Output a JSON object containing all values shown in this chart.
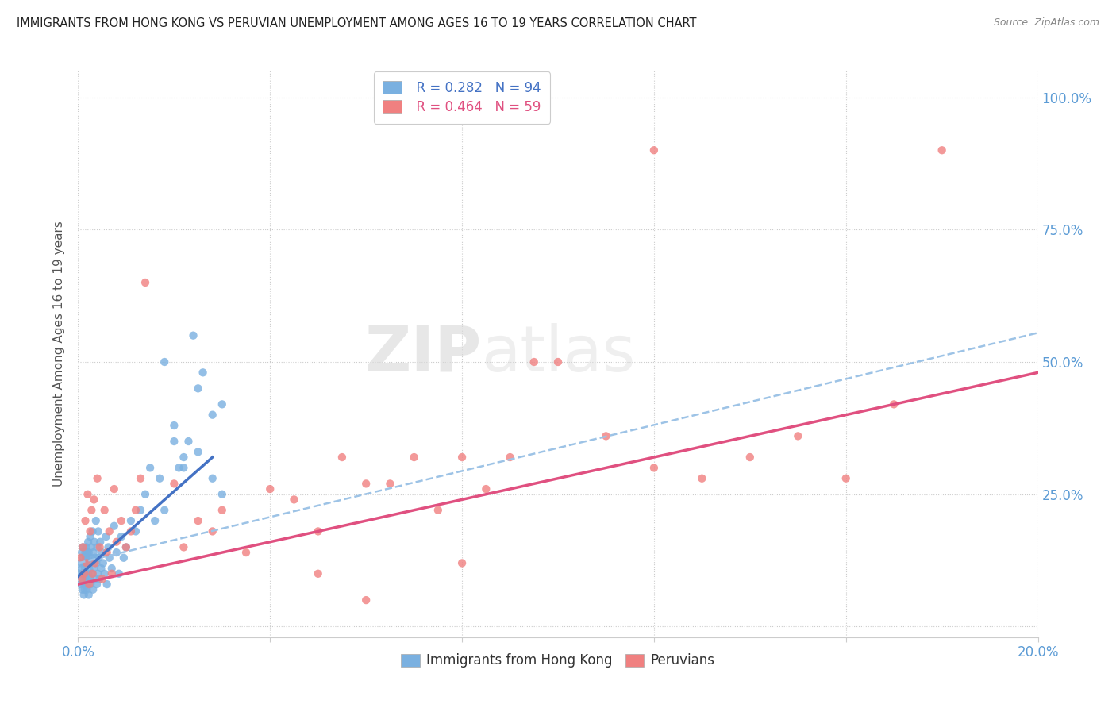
{
  "title": "IMMIGRANTS FROM HONG KONG VS PERUVIAN UNEMPLOYMENT AMONG AGES 16 TO 19 YEARS CORRELATION CHART",
  "source": "Source: ZipAtlas.com",
  "ylabel": "Unemployment Among Ages 16 to 19 years",
  "ytick_values": [
    0,
    0.25,
    0.5,
    0.75,
    1.0
  ],
  "ytick_labels_right": [
    "",
    "25.0%",
    "50.0%",
    "75.0%",
    "100.0%"
  ],
  "xlim": [
    0,
    0.2
  ],
  "ylim": [
    -0.02,
    1.05
  ],
  "watermark": "ZIPatlas",
  "legend_r1": "R = 0.282",
  "legend_n1": "N = 94",
  "legend_r2": "R = 0.464",
  "legend_n2": "N = 59",
  "color_hk": "#7ab0e0",
  "color_peru": "#f08080",
  "color_hk_line": "#4472c4",
  "color_peru_line": "#e05080",
  "color_dashed": "#9dc3e6",
  "background": "#ffffff",
  "hk_line_x0": 0.0,
  "hk_line_y0": 0.095,
  "hk_line_x1": 0.028,
  "hk_line_y1": 0.32,
  "peru_line_x0": 0.0,
  "peru_line_y0": 0.08,
  "peru_line_x1": 0.2,
  "peru_line_y1": 0.48,
  "dash_line_x0": 0.0,
  "dash_line_y0": 0.12,
  "dash_line_x1": 0.2,
  "dash_line_y1": 0.555,
  "hk_x": [
    0.0003,
    0.0005,
    0.0005,
    0.0007,
    0.0008,
    0.0008,
    0.0009,
    0.001,
    0.001,
    0.001,
    0.0012,
    0.0012,
    0.0013,
    0.0013,
    0.0014,
    0.0014,
    0.0015,
    0.0015,
    0.0016,
    0.0016,
    0.0017,
    0.0017,
    0.0018,
    0.0018,
    0.0019,
    0.0019,
    0.002,
    0.002,
    0.0021,
    0.0021,
    0.0022,
    0.0022,
    0.0023,
    0.0024,
    0.0025,
    0.0025,
    0.0026,
    0.0027,
    0.0028,
    0.003,
    0.003,
    0.0031,
    0.0032,
    0.0033,
    0.0034,
    0.0035,
    0.0036,
    0.0037,
    0.0038,
    0.0039,
    0.004,
    0.0041,
    0.0042,
    0.0043,
    0.0045,
    0.0046,
    0.0048,
    0.005,
    0.0052,
    0.0055,
    0.0058,
    0.006,
    0.0063,
    0.0065,
    0.007,
    0.0075,
    0.008,
    0.0085,
    0.009,
    0.0095,
    0.01,
    0.011,
    0.012,
    0.013,
    0.014,
    0.015,
    0.016,
    0.017,
    0.018,
    0.02,
    0.022,
    0.025,
    0.028,
    0.03,
    0.02,
    0.025,
    0.021,
    0.018,
    0.023,
    0.026,
    0.028,
    0.03,
    0.022,
    0.024
  ],
  "hk_y": [
    0.1,
    0.12,
    0.08,
    0.11,
    0.09,
    0.14,
    0.07,
    0.1,
    0.13,
    0.15,
    0.06,
    0.1,
    0.08,
    0.12,
    0.07,
    0.11,
    0.09,
    0.14,
    0.08,
    0.13,
    0.1,
    0.15,
    0.07,
    0.12,
    0.09,
    0.14,
    0.08,
    0.13,
    0.1,
    0.16,
    0.06,
    0.14,
    0.11,
    0.09,
    0.12,
    0.17,
    0.08,
    0.15,
    0.13,
    0.1,
    0.18,
    0.07,
    0.14,
    0.11,
    0.16,
    0.09,
    0.13,
    0.2,
    0.12,
    0.08,
    0.15,
    0.1,
    0.18,
    0.13,
    0.09,
    0.16,
    0.11,
    0.14,
    0.12,
    0.1,
    0.17,
    0.08,
    0.15,
    0.13,
    0.11,
    0.19,
    0.14,
    0.1,
    0.17,
    0.13,
    0.15,
    0.2,
    0.18,
    0.22,
    0.25,
    0.3,
    0.2,
    0.28,
    0.22,
    0.35,
    0.3,
    0.33,
    0.4,
    0.42,
    0.38,
    0.45,
    0.3,
    0.5,
    0.35,
    0.48,
    0.28,
    0.25,
    0.32,
    0.55
  ],
  "peru_x": [
    0.0005,
    0.0008,
    0.001,
    0.0013,
    0.0015,
    0.0018,
    0.002,
    0.0023,
    0.0025,
    0.0028,
    0.003,
    0.0033,
    0.0035,
    0.004,
    0.0045,
    0.005,
    0.0055,
    0.006,
    0.0065,
    0.007,
    0.0075,
    0.008,
    0.009,
    0.01,
    0.011,
    0.012,
    0.013,
    0.014,
    0.02,
    0.022,
    0.025,
    0.028,
    0.03,
    0.035,
    0.04,
    0.045,
    0.05,
    0.055,
    0.06,
    0.065,
    0.07,
    0.075,
    0.08,
    0.085,
    0.09,
    0.095,
    0.1,
    0.11,
    0.12,
    0.13,
    0.14,
    0.15,
    0.16,
    0.17,
    0.18,
    0.12,
    0.08,
    0.06,
    0.05
  ],
  "peru_y": [
    0.13,
    0.09,
    0.15,
    0.1,
    0.2,
    0.12,
    0.25,
    0.08,
    0.18,
    0.22,
    0.1,
    0.24,
    0.12,
    0.28,
    0.15,
    0.09,
    0.22,
    0.14,
    0.18,
    0.1,
    0.26,
    0.16,
    0.2,
    0.15,
    0.18,
    0.22,
    0.28,
    0.65,
    0.27,
    0.15,
    0.2,
    0.18,
    0.22,
    0.14,
    0.26,
    0.24,
    0.18,
    0.32,
    0.27,
    0.27,
    0.32,
    0.22,
    0.32,
    0.26,
    0.32,
    0.5,
    0.5,
    0.36,
    0.3,
    0.28,
    0.32,
    0.36,
    0.28,
    0.42,
    0.9,
    0.9,
    0.12,
    0.05,
    0.1
  ]
}
